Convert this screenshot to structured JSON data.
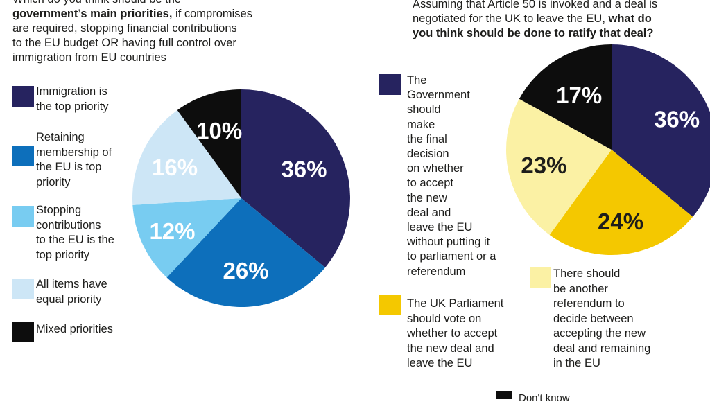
{
  "left_question": {
    "line1": "Which do you think should be the",
    "line2_bold": "government’s main priorities,",
    "line2_rest": " if compromises",
    "line3": "are required, stopping financial contributions",
    "line4": "to the EU budget OR having full control over",
    "line5": "immigration from EU countries"
  },
  "right_question": {
    "line1": "Assuming that Article 50 is invoked and a deal is",
    "line2_plain": "negotiated for the UK to leave the EU,",
    "line2_bold": " what do",
    "line3_bold": "you think should be done to ratify that deal?"
  },
  "chart_data": [
    {
      "type": "pie",
      "start_angle_deg": 0,
      "direction": "clockwise",
      "slices": [
        {
          "label_lines": [
            "Immigration is",
            "the top priority"
          ],
          "value": 36,
          "display": "36%",
          "color": "#26235f",
          "text_color": "#ffffff"
        },
        {
          "label_lines": [
            "Retaining",
            "membership of",
            "the EU is top",
            "priority"
          ],
          "value": 26,
          "display": "26%",
          "color": "#0d6fbb",
          "text_color": "#ffffff"
        },
        {
          "label_lines": [
            "Stopping",
            "contributions",
            "to the EU is the",
            "top priority"
          ],
          "value": 12,
          "display": "12%",
          "color": "#78ccf1",
          "text_color": "#ffffff"
        },
        {
          "label_lines": [
            "All items have",
            "equal priority"
          ],
          "value": 16,
          "display": "16%",
          "color": "#cde6f6",
          "text_color": "#ffffff"
        },
        {
          "label_lines": [
            "Mixed priorities"
          ],
          "value": 10,
          "display": "10%",
          "color": "#0d0d0d",
          "text_color": "#ffffff"
        }
      ]
    },
    {
      "type": "pie",
      "start_angle_deg": 0,
      "direction": "clockwise",
      "slices": [
        {
          "label_lines": [
            "The",
            "Government",
            "should",
            "make",
            "the final",
            "decision",
            "on whether",
            "to accept",
            "the new",
            "deal and",
            "leave the EU",
            "without putting it",
            "to parliament or a",
            "referendum"
          ],
          "value": 36,
          "display": "36%",
          "color": "#26235f",
          "text_color": "#ffffff"
        },
        {
          "label_lines": [
            "The UK Parliament",
            "should vote on",
            "whether to accept",
            "the new deal and",
            "leave the EU"
          ],
          "value": 24,
          "display": "24%",
          "color": "#f4c800",
          "text_color": "#1d1d1b"
        },
        {
          "label_lines": [
            "There should",
            "be another",
            "referendum to",
            "decide between",
            "accepting the new",
            "deal and remaining",
            "in the EU"
          ],
          "value": 23,
          "display": "23%",
          "color": "#fbf1a4",
          "text_color": "#1d1d1b"
        },
        {
          "label_lines": [],
          "value": 17,
          "display": "17%",
          "color": "#0d0d0d",
          "text_color": "#ffffff"
        }
      ],
      "bottom_legend": {
        "label": "Don't know",
        "color": "#0d0d0d"
      }
    }
  ]
}
